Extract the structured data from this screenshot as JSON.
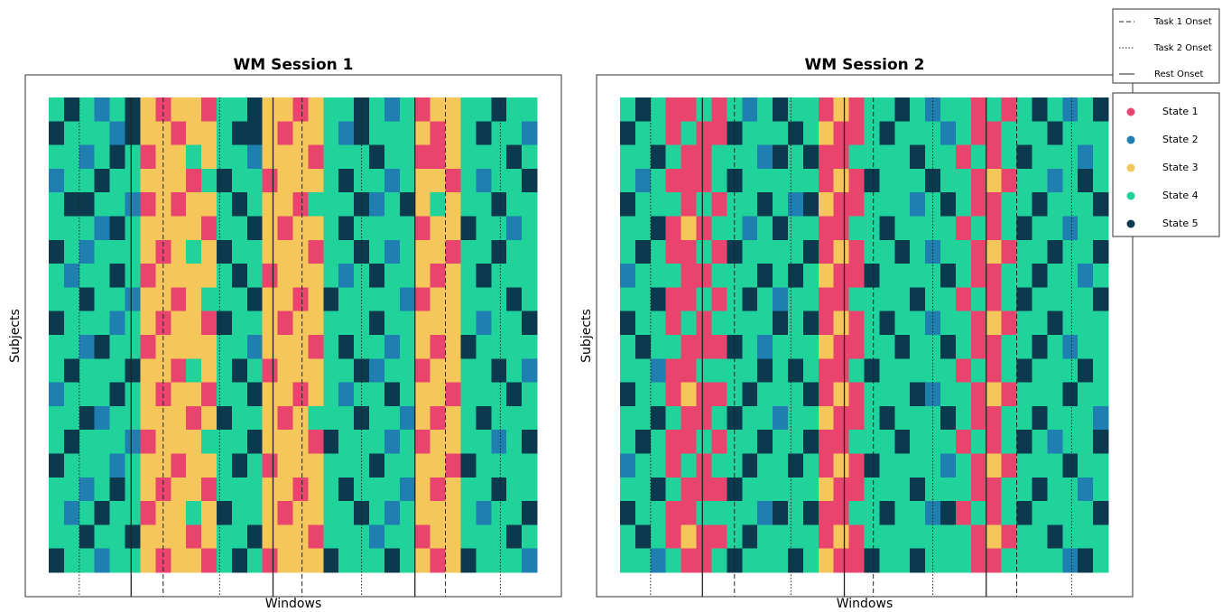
{
  "chart_data": [
    {
      "type": "heatmap",
      "title": "WM Session 1",
      "xlabel": "Windows",
      "ylabel": "Subjects",
      "xlim": [
        0,
        32
      ],
      "task1_onsets": [
        7.5,
        16.6,
        26
      ],
      "task2_onsets": [
        2,
        11.2,
        20.5,
        29.6
      ],
      "rest_onsets": [
        5.4,
        14.7,
        24
      ],
      "z": [
        [
          4,
          5,
          4,
          2,
          4,
          5,
          3,
          1,
          3,
          3,
          1,
          4,
          4,
          5,
          3,
          3,
          1,
          3,
          4,
          4,
          5,
          4,
          2,
          4,
          1,
          3,
          3,
          4,
          4,
          5,
          4,
          4
        ],
        [
          5,
          4,
          4,
          4,
          2,
          5,
          3,
          3,
          1,
          3,
          3,
          4,
          5,
          5,
          3,
          1,
          3,
          3,
          4,
          2,
          5,
          4,
          4,
          4,
          3,
          1,
          3,
          4,
          5,
          4,
          4,
          2
        ],
        [
          4,
          4,
          2,
          4,
          5,
          4,
          1,
          3,
          3,
          4,
          3,
          4,
          4,
          2,
          3,
          3,
          3,
          1,
          4,
          4,
          4,
          5,
          4,
          4,
          1,
          1,
          3,
          4,
          4,
          4,
          5,
          4
        ],
        [
          2,
          4,
          4,
          5,
          4,
          4,
          3,
          3,
          3,
          1,
          4,
          5,
          4,
          4,
          1,
          3,
          3,
          3,
          4,
          5,
          4,
          4,
          2,
          4,
          3,
          3,
          1,
          4,
          2,
          4,
          4,
          5
        ],
        [
          4,
          5,
          5,
          4,
          4,
          2,
          1,
          3,
          1,
          3,
          3,
          4,
          5,
          4,
          3,
          3,
          1,
          4,
          4,
          4,
          5,
          2,
          4,
          5,
          3,
          4,
          3,
          4,
          4,
          5,
          4,
          4
        ],
        [
          4,
          4,
          4,
          2,
          5,
          4,
          3,
          3,
          3,
          3,
          1,
          4,
          4,
          5,
          3,
          1,
          3,
          3,
          4,
          5,
          4,
          4,
          4,
          4,
          1,
          3,
          3,
          5,
          4,
          4,
          2,
          4
        ],
        [
          5,
          4,
          2,
          4,
          4,
          4,
          3,
          1,
          3,
          4,
          3,
          5,
          4,
          4,
          3,
          3,
          3,
          1,
          4,
          4,
          5,
          4,
          2,
          4,
          3,
          3,
          1,
          4,
          4,
          5,
          4,
          4
        ],
        [
          4,
          2,
          4,
          4,
          5,
          4,
          1,
          3,
          3,
          3,
          3,
          4,
          5,
          4,
          1,
          3,
          3,
          3,
          4,
          2,
          4,
          5,
          4,
          4,
          3,
          1,
          3,
          4,
          5,
          4,
          4,
          4
        ],
        [
          4,
          4,
          5,
          4,
          4,
          2,
          3,
          3,
          1,
          3,
          4,
          4,
          4,
          5,
          3,
          3,
          1,
          3,
          5,
          4,
          4,
          4,
          4,
          2,
          1,
          3,
          3,
          4,
          4,
          4,
          5,
          4
        ],
        [
          5,
          4,
          4,
          4,
          2,
          4,
          3,
          1,
          3,
          3,
          1,
          5,
          4,
          4,
          3,
          1,
          3,
          3,
          4,
          4,
          4,
          5,
          4,
          4,
          3,
          3,
          3,
          4,
          2,
          4,
          4,
          5
        ],
        [
          4,
          4,
          2,
          5,
          4,
          4,
          1,
          3,
          3,
          3,
          3,
          4,
          4,
          2,
          3,
          3,
          3,
          1,
          4,
          5,
          4,
          4,
          2,
          4,
          3,
          1,
          3,
          5,
          4,
          4,
          4,
          4
        ],
        [
          4,
          5,
          4,
          4,
          4,
          5,
          3,
          3,
          1,
          4,
          3,
          4,
          5,
          4,
          1,
          3,
          3,
          3,
          4,
          4,
          5,
          2,
          4,
          4,
          1,
          3,
          3,
          4,
          4,
          5,
          4,
          2
        ],
        [
          2,
          4,
          4,
          4,
          5,
          4,
          3,
          1,
          3,
          3,
          1,
          4,
          4,
          5,
          3,
          3,
          1,
          3,
          4,
          2,
          4,
          4,
          5,
          4,
          3,
          3,
          1,
          4,
          4,
          4,
          5,
          4
        ],
        [
          4,
          4,
          5,
          2,
          4,
          4,
          3,
          3,
          3,
          1,
          3,
          5,
          4,
          4,
          3,
          1,
          3,
          4,
          4,
          4,
          5,
          4,
          4,
          2,
          3,
          1,
          3,
          4,
          5,
          4,
          4,
          4
        ],
        [
          4,
          5,
          4,
          4,
          4,
          2,
          1,
          3,
          3,
          3,
          4,
          4,
          4,
          5,
          3,
          3,
          3,
          1,
          5,
          4,
          4,
          4,
          2,
          4,
          1,
          3,
          3,
          4,
          4,
          2,
          4,
          5
        ],
        [
          5,
          4,
          4,
          4,
          2,
          4,
          3,
          3,
          1,
          3,
          3,
          4,
          5,
          4,
          1,
          3,
          3,
          3,
          4,
          4,
          4,
          5,
          4,
          4,
          3,
          3,
          1,
          5,
          4,
          4,
          4,
          4
        ],
        [
          4,
          4,
          2,
          4,
          5,
          4,
          3,
          1,
          3,
          3,
          1,
          4,
          4,
          4,
          3,
          3,
          1,
          3,
          4,
          5,
          4,
          4,
          4,
          2,
          3,
          1,
          3,
          4,
          4,
          5,
          4,
          4
        ],
        [
          4,
          2,
          4,
          5,
          4,
          4,
          1,
          3,
          3,
          4,
          3,
          5,
          4,
          4,
          3,
          1,
          3,
          3,
          4,
          4,
          5,
          4,
          2,
          4,
          3,
          3,
          3,
          4,
          2,
          4,
          4,
          5
        ],
        [
          4,
          4,
          5,
          4,
          4,
          5,
          3,
          3,
          3,
          1,
          3,
          4,
          4,
          5,
          3,
          3,
          3,
          1,
          4,
          4,
          4,
          2,
          4,
          4,
          1,
          3,
          3,
          4,
          4,
          4,
          5,
          4
        ],
        [
          5,
          4,
          4,
          2,
          4,
          4,
          3,
          1,
          3,
          3,
          1,
          4,
          5,
          4,
          1,
          3,
          3,
          3,
          5,
          4,
          4,
          4,
          5,
          4,
          3,
          1,
          3,
          5,
          4,
          4,
          4,
          2
        ]
      ]
    },
    {
      "type": "heatmap",
      "title": "WM Session 2",
      "xlabel": "Windows",
      "ylabel": "Subjects",
      "xlim": [
        0,
        32
      ],
      "task1_onsets": [
        7.5,
        16.6,
        26
      ],
      "task2_onsets": [
        2,
        11.2,
        20.5,
        29.6
      ],
      "rest_onsets": [
        5.4,
        14.7,
        24
      ],
      "z": [
        [
          4,
          5,
          4,
          1,
          1,
          4,
          1,
          4,
          2,
          4,
          5,
          4,
          4,
          1,
          3,
          1,
          4,
          4,
          5,
          4,
          2,
          4,
          4,
          1,
          4,
          1,
          4,
          5,
          4,
          2,
          4,
          5
        ],
        [
          5,
          4,
          4,
          1,
          4,
          1,
          1,
          5,
          4,
          4,
          4,
          5,
          4,
          3,
          1,
          1,
          4,
          5,
          4,
          4,
          4,
          2,
          4,
          1,
          1,
          4,
          4,
          4,
          5,
          4,
          4,
          4
        ],
        [
          4,
          4,
          5,
          4,
          1,
          1,
          4,
          4,
          4,
          2,
          5,
          4,
          5,
          1,
          1,
          4,
          4,
          4,
          4,
          5,
          4,
          4,
          1,
          4,
          1,
          4,
          5,
          4,
          4,
          4,
          2,
          4
        ],
        [
          4,
          2,
          4,
          1,
          1,
          1,
          4,
          5,
          4,
          4,
          4,
          4,
          4,
          1,
          3,
          1,
          5,
          4,
          4,
          4,
          5,
          4,
          4,
          1,
          3,
          1,
          4,
          4,
          2,
          4,
          5,
          4
        ],
        [
          5,
          4,
          4,
          4,
          1,
          4,
          1,
          4,
          4,
          5,
          4,
          2,
          5,
          3,
          1,
          1,
          4,
          4,
          4,
          2,
          4,
          5,
          4,
          1,
          1,
          4,
          4,
          5,
          4,
          4,
          4,
          5
        ],
        [
          4,
          4,
          5,
          1,
          3,
          1,
          4,
          4,
          2,
          4,
          5,
          4,
          4,
          1,
          1,
          4,
          4,
          5,
          4,
          4,
          4,
          4,
          1,
          4,
          1,
          4,
          5,
          4,
          4,
          2,
          4,
          4
        ],
        [
          4,
          5,
          4,
          1,
          1,
          4,
          1,
          5,
          4,
          4,
          4,
          4,
          5,
          1,
          3,
          1,
          4,
          4,
          5,
          4,
          2,
          4,
          4,
          1,
          3,
          1,
          4,
          4,
          5,
          4,
          4,
          5
        ],
        [
          2,
          4,
          4,
          4,
          1,
          1,
          4,
          4,
          4,
          5,
          4,
          5,
          4,
          3,
          1,
          1,
          5,
          4,
          4,
          4,
          4,
          5,
          4,
          1,
          1,
          4,
          4,
          5,
          4,
          4,
          2,
          4
        ],
        [
          4,
          4,
          5,
          1,
          1,
          4,
          1,
          4,
          5,
          4,
          2,
          4,
          4,
          1,
          1,
          4,
          4,
          4,
          4,
          5,
          4,
          4,
          1,
          4,
          1,
          4,
          5,
          4,
          4,
          4,
          4,
          5
        ],
        [
          5,
          4,
          4,
          1,
          4,
          1,
          4,
          4,
          4,
          4,
          5,
          4,
          5,
          1,
          3,
          1,
          4,
          5,
          4,
          4,
          2,
          4,
          4,
          1,
          3,
          1,
          4,
          4,
          5,
          4,
          4,
          4
        ],
        [
          4,
          5,
          4,
          4,
          1,
          1,
          1,
          5,
          4,
          2,
          4,
          4,
          4,
          3,
          1,
          1,
          4,
          4,
          5,
          4,
          4,
          5,
          4,
          1,
          1,
          4,
          4,
          5,
          4,
          2,
          4,
          4
        ],
        [
          4,
          4,
          2,
          1,
          1,
          4,
          4,
          4,
          4,
          5,
          4,
          5,
          4,
          1,
          1,
          4,
          5,
          4,
          4,
          4,
          4,
          4,
          1,
          4,
          1,
          4,
          5,
          4,
          4,
          4,
          5,
          4
        ],
        [
          5,
          4,
          4,
          1,
          3,
          1,
          1,
          4,
          5,
          4,
          4,
          4,
          5,
          1,
          3,
          1,
          4,
          4,
          4,
          5,
          2,
          4,
          4,
          1,
          3,
          1,
          4,
          4,
          4,
          5,
          4,
          4
        ],
        [
          4,
          4,
          5,
          4,
          1,
          1,
          4,
          5,
          4,
          4,
          2,
          4,
          4,
          3,
          1,
          1,
          4,
          5,
          4,
          4,
          4,
          5,
          4,
          1,
          1,
          4,
          4,
          5,
          4,
          4,
          4,
          2
        ],
        [
          4,
          5,
          4,
          1,
          1,
          4,
          1,
          4,
          4,
          5,
          4,
          4,
          5,
          1,
          1,
          4,
          4,
          4,
          5,
          4,
          4,
          4,
          1,
          4,
          1,
          4,
          5,
          4,
          2,
          4,
          4,
          5
        ],
        [
          2,
          4,
          4,
          1,
          4,
          1,
          4,
          4,
          5,
          4,
          4,
          5,
          4,
          1,
          3,
          1,
          5,
          4,
          4,
          4,
          4,
          2,
          4,
          1,
          3,
          1,
          4,
          4,
          4,
          5,
          4,
          4
        ],
        [
          4,
          4,
          5,
          4,
          1,
          1,
          1,
          5,
          4,
          4,
          4,
          4,
          4,
          3,
          1,
          1,
          4,
          4,
          4,
          5,
          4,
          4,
          4,
          1,
          1,
          4,
          4,
          5,
          4,
          4,
          2,
          4
        ],
        [
          5,
          4,
          4,
          1,
          1,
          4,
          4,
          4,
          4,
          2,
          5,
          4,
          5,
          1,
          1,
          4,
          4,
          5,
          4,
          4,
          2,
          5,
          1,
          4,
          1,
          4,
          5,
          4,
          4,
          4,
          4,
          5
        ],
        [
          4,
          5,
          4,
          1,
          3,
          1,
          1,
          4,
          5,
          4,
          4,
          4,
          4,
          1,
          3,
          1,
          4,
          4,
          4,
          4,
          4,
          4,
          4,
          1,
          3,
          1,
          4,
          4,
          5,
          4,
          4,
          4
        ],
        [
          4,
          4,
          2,
          4,
          1,
          1,
          4,
          5,
          4,
          4,
          4,
          5,
          4,
          3,
          1,
          1,
          5,
          4,
          4,
          5,
          4,
          4,
          4,
          1,
          1,
          4,
          4,
          4,
          4,
          2,
          5,
          4
        ]
      ]
    }
  ],
  "legend": {
    "onsets": [
      {
        "name": "Task 1 Onset",
        "style": "dashed",
        "key": "task1_onsets"
      },
      {
        "name": "Task 2 Onset",
        "style": "dotted",
        "key": "task2_onsets"
      },
      {
        "name": "Rest Onset",
        "style": "solid",
        "key": "rest_onsets"
      }
    ],
    "states": [
      {
        "name": "State 1",
        "color": "#e8446e"
      },
      {
        "name": "State 2",
        "color": "#1f7fb0"
      },
      {
        "name": "State 3",
        "color": "#f5c65a"
      },
      {
        "name": "State 4",
        "color": "#1fd39a"
      },
      {
        "name": "State 5",
        "color": "#0b3a4e"
      }
    ]
  }
}
